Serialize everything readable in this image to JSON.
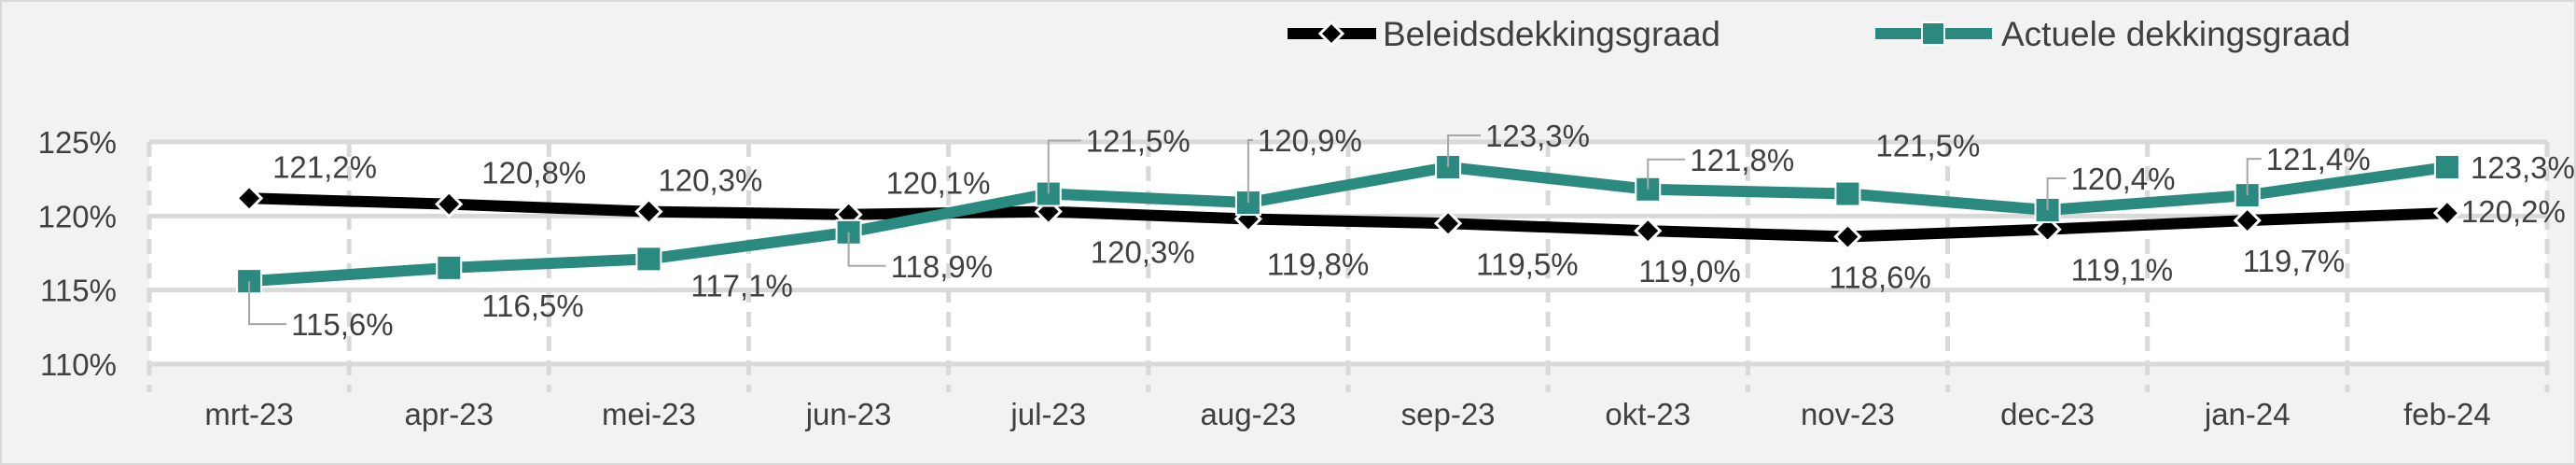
{
  "chart_data": {
    "type": "line",
    "categories": [
      "mrt-23",
      "apr-23",
      "mei-23",
      "jun-23",
      "jul-23",
      "aug-23",
      "sep-23",
      "okt-23",
      "nov-23",
      "dec-23",
      "jan-24",
      "feb-24"
    ],
    "ylim": [
      110,
      125
    ],
    "yticks": [
      110,
      115,
      120,
      125
    ],
    "ytick_labels": [
      "110%",
      "115%",
      "120%",
      "125%"
    ],
    "grid": "horizontal solid, vertical dashed",
    "legend": "top-right",
    "series": [
      {
        "name": "Beleidsdekkingsgraad",
        "color": "#000000",
        "marker": "diamond",
        "values": [
          121.2,
          120.8,
          120.3,
          120.1,
          120.3,
          119.8,
          119.5,
          119.0,
          118.6,
          119.1,
          119.7,
          120.2
        ],
        "labels": [
          "121,2%",
          "120,8%",
          "120,3%",
          "120,1%",
          "120,3%",
          "119,8%",
          "119,5%",
          "119,0%",
          "118,6%",
          "119,1%",
          "119,7%",
          "120,2%"
        ]
      },
      {
        "name": "Actuele dekkingsgraad",
        "color": "#2a8a80",
        "marker": "square",
        "values": [
          115.6,
          116.5,
          117.1,
          118.9,
          121.5,
          120.9,
          123.3,
          121.8,
          121.5,
          120.4,
          121.4,
          123.3
        ],
        "labels": [
          "115,6%",
          "116,5%",
          "117,1%",
          "118,9%",
          "121,5%",
          "120,9%",
          "123,3%",
          "121,8%",
          "121,5%",
          "120,4%",
          "121,4%",
          "123,3%"
        ]
      }
    ]
  }
}
